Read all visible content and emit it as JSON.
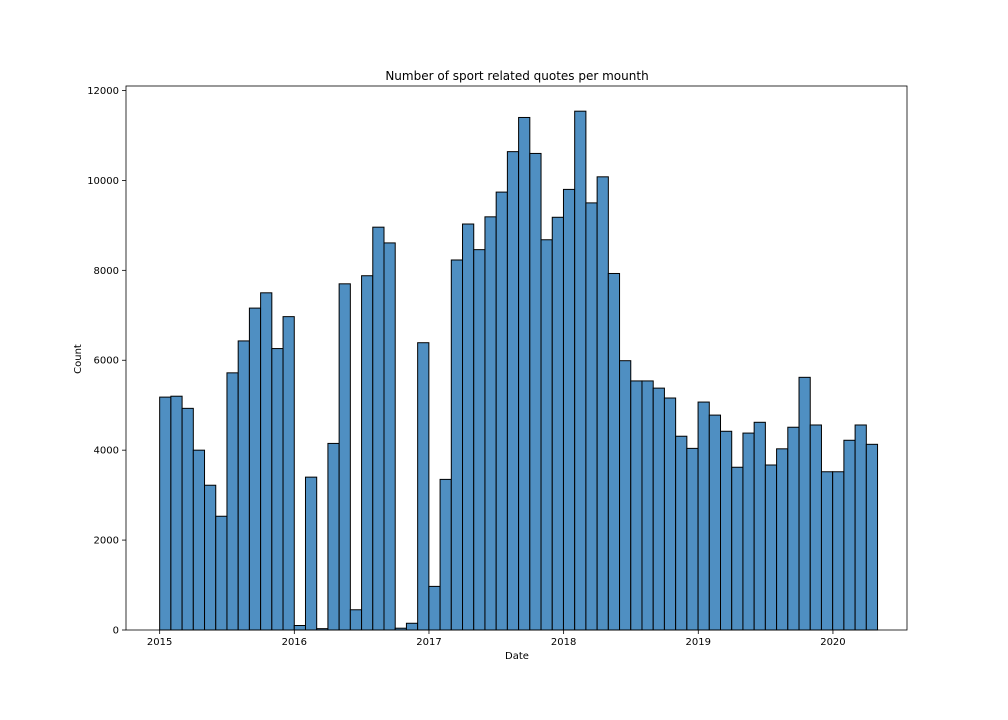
{
  "chart_data": {
    "type": "bar",
    "title": "Number of sport related quotes per mounth",
    "xlabel": "Date",
    "ylabel": "Count",
    "xlim": [
      2014.75,
      2020.55
    ],
    "ylim": [
      0,
      12100
    ],
    "bar_color": "#4f8fc2",
    "edge_color": "#000000",
    "grid": false,
    "x_ticks": [
      2015,
      2016,
      2017,
      2018,
      2019,
      2020
    ],
    "x_tick_labels": [
      "2015",
      "2016",
      "2017",
      "2018",
      "2019",
      "2020"
    ],
    "y_ticks": [
      0,
      2000,
      4000,
      6000,
      8000,
      10000,
      12000
    ],
    "y_tick_labels": [
      "0",
      "2000",
      "4000",
      "6000",
      "8000",
      "10000",
      "12000"
    ],
    "bin_start": 2015.0,
    "bin_width": 0.0833,
    "values": [
      5180,
      5200,
      4930,
      4000,
      3220,
      2530,
      5720,
      6430,
      7160,
      7500,
      6260,
      6970,
      100,
      3400,
      30,
      4150,
      7700,
      450,
      7880,
      8960,
      8610,
      40,
      150,
      6390,
      970,
      3350,
      8230,
      9030,
      8460,
      9190,
      9740,
      10640,
      11400,
      10600,
      8680,
      9180,
      9800,
      11540,
      9500,
      10080,
      7930,
      5990,
      5540,
      5540,
      5380,
      5160,
      4310,
      4040,
      5070,
      4780,
      4420,
      3620,
      4380,
      4620,
      3670,
      4030,
      4510,
      5620,
      4560,
      3520,
      3520,
      4220,
      4560,
      4130
    ]
  }
}
